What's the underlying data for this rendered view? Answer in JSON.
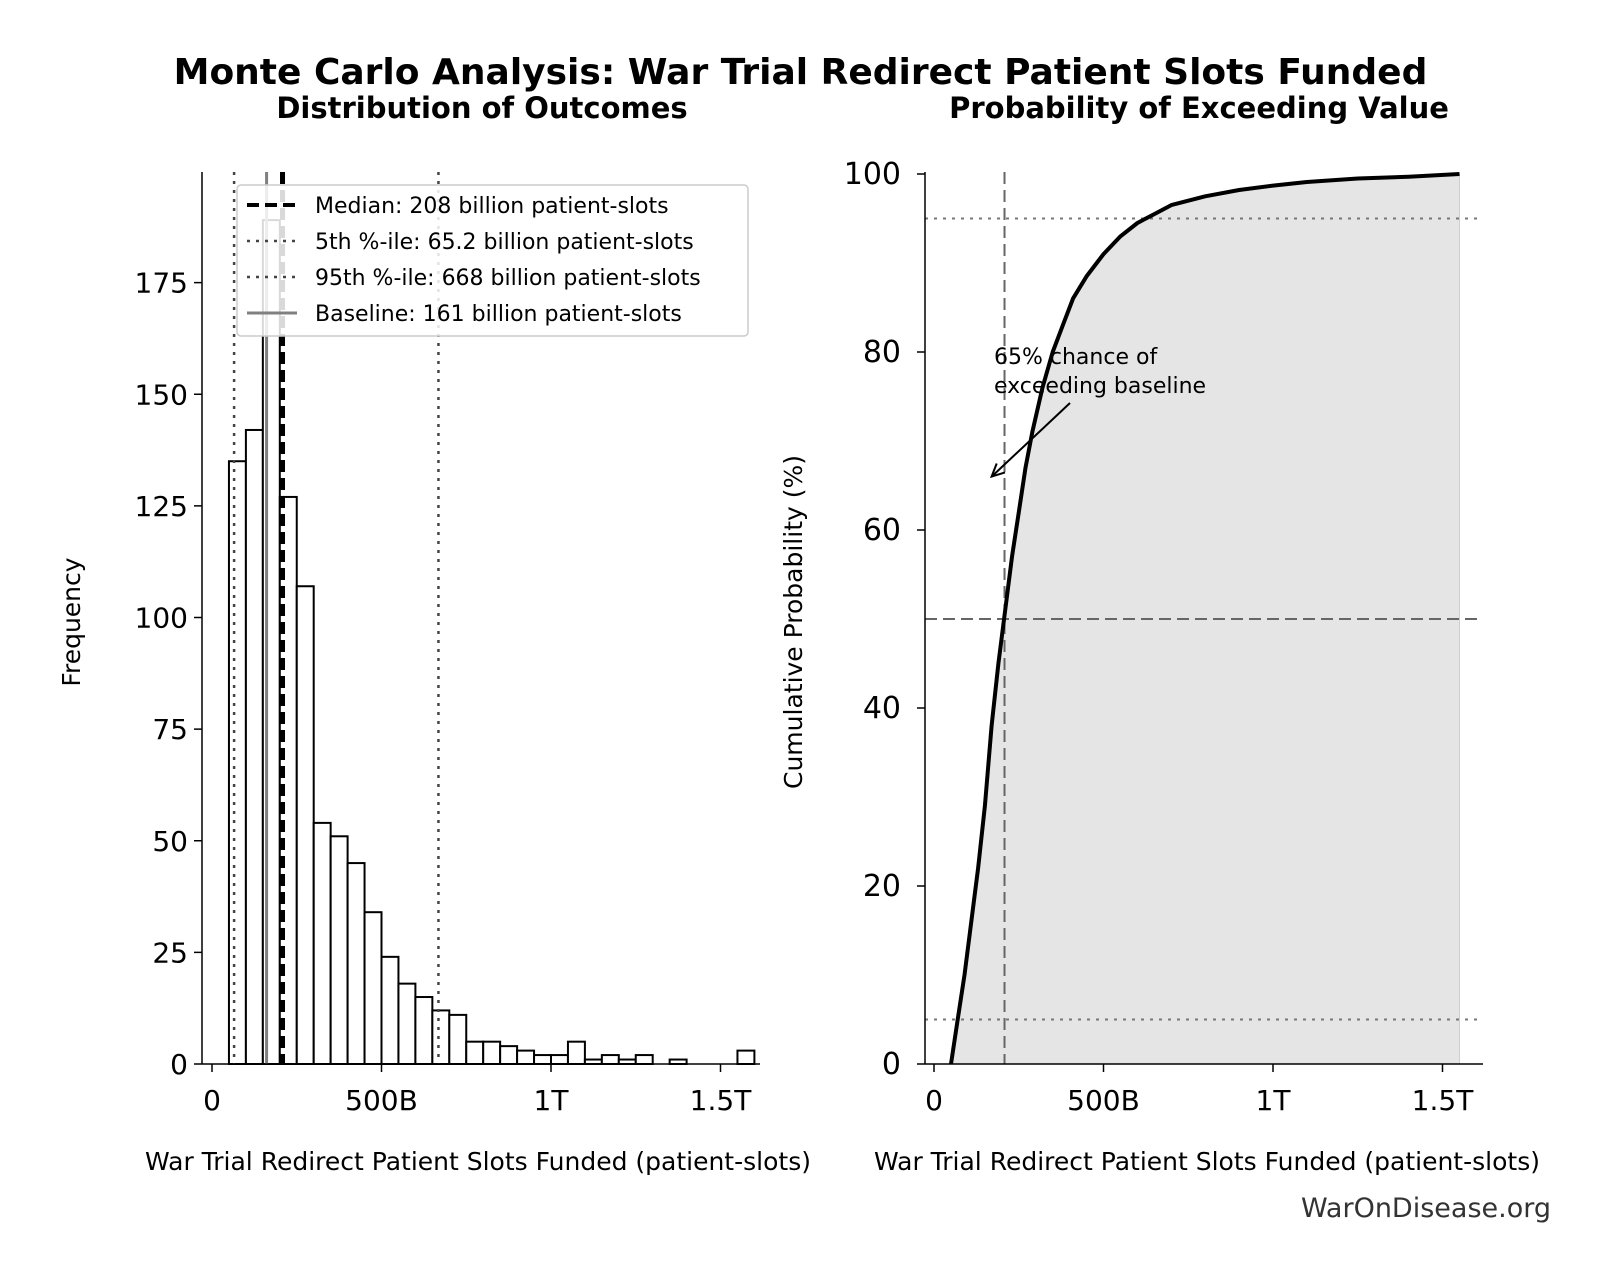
{
  "figure": {
    "title": "Monte Carlo Analysis: War Trial Redirect Patient Slots Funded",
    "watermark": "WarOnDisease.org"
  },
  "chart_data": [
    {
      "type": "bar",
      "subtype": "histogram",
      "title": "Distribution of Outcomes",
      "xlabel": "War Trial Redirect Patient Slots Funded (patient-slots)",
      "ylabel": "Frequency",
      "xlim": [
        -0.04,
        1.62
      ],
      "ylim": [
        0,
        200
      ],
      "x_unit": "trillion patient-slots",
      "xticks": [
        0,
        0.5,
        1.0,
        1.5
      ],
      "xtick_labels": [
        "0",
        "500B",
        "1T",
        "1.5T"
      ],
      "yticks": [
        0,
        25,
        50,
        75,
        100,
        125,
        150,
        175
      ],
      "bin_width": 0.05,
      "bin_edges_start": 0.05,
      "frequencies": [
        135,
        142,
        189,
        127,
        107,
        54,
        51,
        45,
        34,
        24,
        18,
        15,
        12,
        11,
        5,
        5,
        4,
        3,
        2,
        2,
        5,
        1,
        2,
        1,
        2,
        0,
        1,
        0,
        0,
        0,
        3
      ],
      "reference_lines": [
        {
          "label": "Median: 208 billion patient-slots",
          "value": 0.208,
          "style": "dashed",
          "color": "#000000"
        },
        {
          "label": "5th %-ile: 65.2 billion patient-slots",
          "value": 0.0652,
          "style": "dotted",
          "color": "#444444"
        },
        {
          "label": "95th %-ile: 668 billion patient-slots",
          "value": 0.668,
          "style": "dotted",
          "color": "#444444"
        },
        {
          "label": "Baseline: 161 billion patient-slots",
          "value": 0.161,
          "style": "solid",
          "color": "#808080"
        }
      ],
      "legend_position": "top-right",
      "grid": false
    },
    {
      "type": "area",
      "title": "Probability of Exceeding Value",
      "xlabel": "War Trial Redirect Patient Slots Funded (patient-slots)",
      "ylabel": "Cumulative Probability (%)",
      "xlim": [
        -0.02,
        1.62
      ],
      "ylim": [
        0,
        100
      ],
      "x_unit": "trillion patient-slots",
      "xticks": [
        0,
        0.5,
        1.0,
        1.5
      ],
      "xtick_labels": [
        "0",
        "500B",
        "1T",
        "1.5T"
      ],
      "yticks": [
        0,
        20,
        40,
        60,
        80,
        100
      ],
      "x": [
        0.05,
        0.07,
        0.09,
        0.11,
        0.13,
        0.15,
        0.17,
        0.19,
        0.21,
        0.23,
        0.25,
        0.27,
        0.29,
        0.32,
        0.35,
        0.38,
        0.41,
        0.45,
        0.5,
        0.55,
        0.6,
        0.65,
        0.7,
        0.8,
        0.9,
        1.0,
        1.1,
        1.25,
        1.4,
        1.55
      ],
      "y": [
        0,
        5,
        10,
        16,
        22,
        29,
        38,
        45,
        51,
        57,
        62,
        67,
        71,
        76,
        80,
        83,
        86,
        88.5,
        91,
        93,
        94.5,
        95.5,
        96.5,
        97.5,
        98.2,
        98.7,
        99.1,
        99.5,
        99.7,
        100
      ],
      "reference_lines": {
        "vertical": [
          {
            "value": 0.208,
            "style": "dashed"
          }
        ],
        "horizontal": [
          {
            "value": 50,
            "style": "dashed"
          },
          {
            "value": 95,
            "style": "dotted"
          },
          {
            "value": 5,
            "style": "dotted"
          }
        ]
      },
      "annotation": {
        "text_line1": "65% chance of",
        "text_line2": "exceeding baseline",
        "points_to": [
          0.17,
          66
        ]
      },
      "grid": false
    }
  ]
}
